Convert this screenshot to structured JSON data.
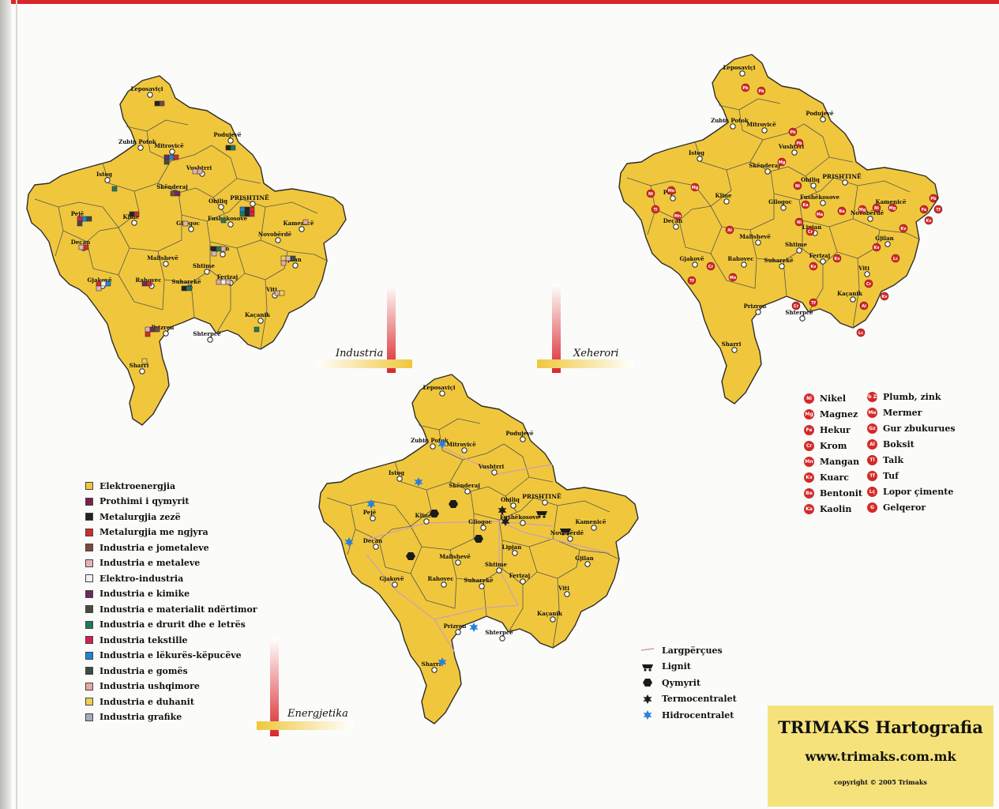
{
  "maps": {
    "industry": {
      "title": "Industria",
      "towns": [
        "Leposaviçi",
        "Podujevë",
        "Zubin Potok",
        "Mitrovicë",
        "Vushtrri",
        "Istog",
        "Skënderaj",
        "Obiliq",
        "PRISHTINË",
        "Pejë",
        "Kline",
        "Gllogoc",
        "Fushëkosove",
        "Kamenicë",
        "Novobërdë",
        "Deçan",
        "Lipjan",
        "Malishevë",
        "Shtime",
        "Gjilan",
        "Gjakovë",
        "Rahovec",
        "Suharekë",
        "Ferizaj",
        "Viti",
        "Prizren",
        "Kaçanik",
        "Shterpcë",
        "Sharri"
      ]
    },
    "mining": {
      "title": "Xeherori",
      "towns": [
        "Leposaviçi",
        "Podujevë",
        "Zubin Potok",
        "Mitrovicë",
        "Vushtrri",
        "Istog",
        "Skënderaj",
        "Obiliq",
        "PRISHTINË",
        "Pejë",
        "Kline",
        "Gllogoc",
        "Fushëkosove",
        "Kamenicë",
        "Novobërdë",
        "Deçan",
        "Lipjan",
        "Malishevë",
        "Shtime",
        "Gjilan",
        "Gjakovë",
        "Rahovec",
        "Suharekë",
        "Ferizaj",
        "Viti",
        "Prizren",
        "Kaçanik",
        "Shterpcë",
        "Sharri"
      ]
    },
    "energy": {
      "title": "Energjetika",
      "towns": [
        "Leposaviçi",
        "Podujevë",
        "Zubin Potok",
        "Mitrovicë",
        "Vushtrri",
        "Istog",
        "Skënderaj",
        "Obiliq",
        "PRISHTINË",
        "Pejë",
        "Kline",
        "Gllogoc",
        "Fushëkosove",
        "Kamenicë",
        "Novobërdë",
        "Deçan",
        "Lipjan",
        "Malishevë",
        "Shtime",
        "Gjilan",
        "Gjakovë",
        "Rahovec",
        "Suharekë",
        "Ferizaj",
        "Viti",
        "Prizren",
        "Kaçanik",
        "Shterpcë",
        "Sharri"
      ]
    }
  },
  "industry_legend": [
    {
      "label": "Elektroenergjia",
      "color": "#f0c73c"
    },
    {
      "label": "Prothimi i qymyrit",
      "color": "#7b1f4e"
    },
    {
      "label": "Metalurgjia zezë",
      "color": "#222222"
    },
    {
      "label": "Metalurgjia me ngjyra",
      "color": "#d42a2a"
    },
    {
      "label": "Industria e jometaleve",
      "color": "#7a4a3a"
    },
    {
      "label": "Industria e metaleve",
      "color": "#e4b4b4"
    },
    {
      "label": "Elektro-industria",
      "color": "#f1f1f1"
    },
    {
      "label": "Industria e kimike",
      "color": "#6d2a5e"
    },
    {
      "label": "Industria e materialit ndërtimor",
      "color": "#4a4a3c"
    },
    {
      "label": "Industria e  drurit dhe e letrës",
      "color": "#1f7a5c"
    },
    {
      "label": "Industria tekstille",
      "color": "#d41e55"
    },
    {
      "label": "Industria e lëkurës-këpucëve",
      "color": "#1c84d6"
    },
    {
      "label": "Industria e gomës",
      "color": "#3c4a44"
    },
    {
      "label": "Industria ushqimore",
      "color": "#e6a9a4"
    },
    {
      "label": "Industria e duhanit",
      "color": "#efd054"
    },
    {
      "label": "Industria grafike",
      "color": "#a3aebb"
    }
  ],
  "mineral_legend_left": [
    {
      "code": "Ni",
      "label": "Nikel"
    },
    {
      "code": "Mg",
      "label": "Magnez"
    },
    {
      "code": "Fe",
      "label": "Hekur"
    },
    {
      "code": "Cr",
      "label": "Krom"
    },
    {
      "code": "Mn",
      "label": "Mangan"
    },
    {
      "code": "Kv",
      "label": "Kuarc"
    },
    {
      "code": "Be",
      "label": "Bentonit"
    },
    {
      "code": "Ka",
      "label": "Kaolin"
    }
  ],
  "mineral_legend_right": [
    {
      "code": "Pb Zn",
      "label": "Plumb, zink"
    },
    {
      "code": "Me",
      "label": "Mermer"
    },
    {
      "code": "Gz",
      "label": "Gur zbukurues"
    },
    {
      "code": "Al",
      "label": "Boksit"
    },
    {
      "code": "Tl",
      "label": "Talk"
    },
    {
      "code": "Tf",
      "label": "Tuf"
    },
    {
      "code": "Lç",
      "label": "Lopor çimente"
    },
    {
      "code": "G",
      "label": "Gelqeror"
    }
  ],
  "energy_legend": [
    {
      "icon": "power-line-icon",
      "label": "Largpërçues"
    },
    {
      "icon": "lignite-icon",
      "label": "Lignit"
    },
    {
      "icon": "coal-icon",
      "label": "Qymyrit"
    },
    {
      "icon": "thermal-plant-icon",
      "label": "Termocentralet"
    },
    {
      "icon": "hydro-plant-icon",
      "label": "Hidrocentralet"
    }
  ],
  "brand": {
    "title": "TRIMAKS Hartografia",
    "url": "www.trimaks.com.mk",
    "copyright": "copyright  ©  2005 Trimaks"
  },
  "colors": {
    "territory": "#f0c73c",
    "accent_red": "#d9262b",
    "mineral_red": "#d42a2a",
    "brand_yellow": "#f5e27b",
    "hydro_blue": "#2a7fdc"
  }
}
